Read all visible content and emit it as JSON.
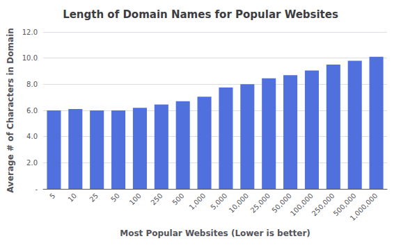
{
  "chart_data": {
    "type": "bar",
    "title": "Length of Domain Names for Popular Websites",
    "xlabel": "Most Popular Websites (Lower is better)",
    "ylabel": "Average # of Characters in Domain",
    "categories": [
      "5",
      "10",
      "25",
      "50",
      "100",
      "250",
      "500",
      "1,000",
      "5,000",
      "10,000",
      "25,000",
      "50,000",
      "100,000",
      "250,000",
      "500,000",
      "1,000,000"
    ],
    "values": [
      6.0,
      6.1,
      6.0,
      6.0,
      6.2,
      6.45,
      6.7,
      7.05,
      7.75,
      8.0,
      8.45,
      8.7,
      9.05,
      9.5,
      9.8,
      10.1
    ],
    "ylim": [
      0,
      12.0
    ],
    "yticks": [
      {
        "value": 0,
        "label": "-"
      },
      {
        "value": 2.0,
        "label": "2.0"
      },
      {
        "value": 4.0,
        "label": "4.0"
      },
      {
        "value": 6.0,
        "label": "6.0"
      },
      {
        "value": 8.0,
        "label": "8.0"
      },
      {
        "value": 10.0,
        "label": "10.0"
      },
      {
        "value": 12.0,
        "label": "12.0"
      }
    ],
    "grid": true
  }
}
